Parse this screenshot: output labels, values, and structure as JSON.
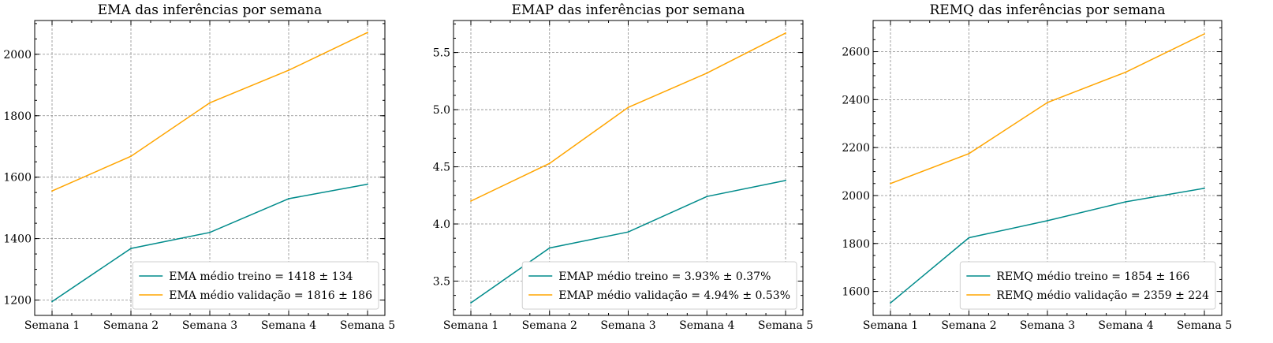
{
  "chart_data": [
    {
      "type": "line",
      "title": "EMA das inferências por semana",
      "categories": [
        "Semana 1",
        "Semana 2",
        "Semana 3",
        "Semana 4",
        "Semana 5"
      ],
      "ylim": [
        1150,
        2110
      ],
      "yticks": [
        1200,
        1400,
        1600,
        1800,
        2000
      ],
      "ytick_labels": [
        "1200",
        "1400",
        "1600",
        "1800",
        "2000"
      ],
      "legend_position": "lower-right",
      "grid": true,
      "series": [
        {
          "name": "EMA médio treino = 1418 ± 134",
          "color": "#008B8B",
          "values": [
            1195,
            1368,
            1420,
            1530,
            1577
          ]
        },
        {
          "name": "EMA médio validação = 1816 ± 186",
          "color": "#FFA500",
          "values": [
            1555,
            1668,
            1842,
            1948,
            2071
          ]
        }
      ]
    },
    {
      "type": "line",
      "title": "EMAP das inferências por semana",
      "categories": [
        "Semana 1",
        "Semana 2",
        "Semana 3",
        "Semana 4",
        "Semana 5"
      ],
      "ylim": [
        3.2,
        5.78
      ],
      "yticks": [
        3.5,
        4.0,
        4.5,
        5.0,
        5.5
      ],
      "ytick_labels": [
        "3.5",
        "4.0",
        "4.5",
        "5.0",
        "5.5"
      ],
      "legend_position": "lower-right",
      "grid": true,
      "series": [
        {
          "name": "EMAP médio treino = 3.93% ± 0.37%",
          "color": "#008B8B",
          "values": [
            3.31,
            3.79,
            3.93,
            4.24,
            4.38
          ]
        },
        {
          "name": "EMAP médio validação = 4.94% ± 0.53%",
          "color": "#FFA500",
          "values": [
            4.2,
            4.53,
            5.02,
            5.32,
            5.67
          ]
        }
      ]
    },
    {
      "type": "line",
      "title": "REMQ das inferências por semana",
      "categories": [
        "Semana 1",
        "Semana 2",
        "Semana 3",
        "Semana 4",
        "Semana 5"
      ],
      "ylim": [
        1500,
        2730
      ],
      "yticks": [
        1600,
        1800,
        2000,
        2200,
        2400,
        2600
      ],
      "ytick_labels": [
        "1600",
        "1800",
        "2000",
        "2200",
        "2400",
        "2600"
      ],
      "legend_position": "lower-right",
      "grid": true,
      "series": [
        {
          "name": "REMQ médio treino = 1854 ± 166",
          "color": "#008B8B",
          "values": [
            1552,
            1824,
            1895,
            1974,
            2030
          ]
        },
        {
          "name": "REMQ médio validação = 2359 ± 224",
          "color": "#FFA500",
          "values": [
            2050,
            2175,
            2388,
            2515,
            2674
          ]
        }
      ]
    }
  ]
}
